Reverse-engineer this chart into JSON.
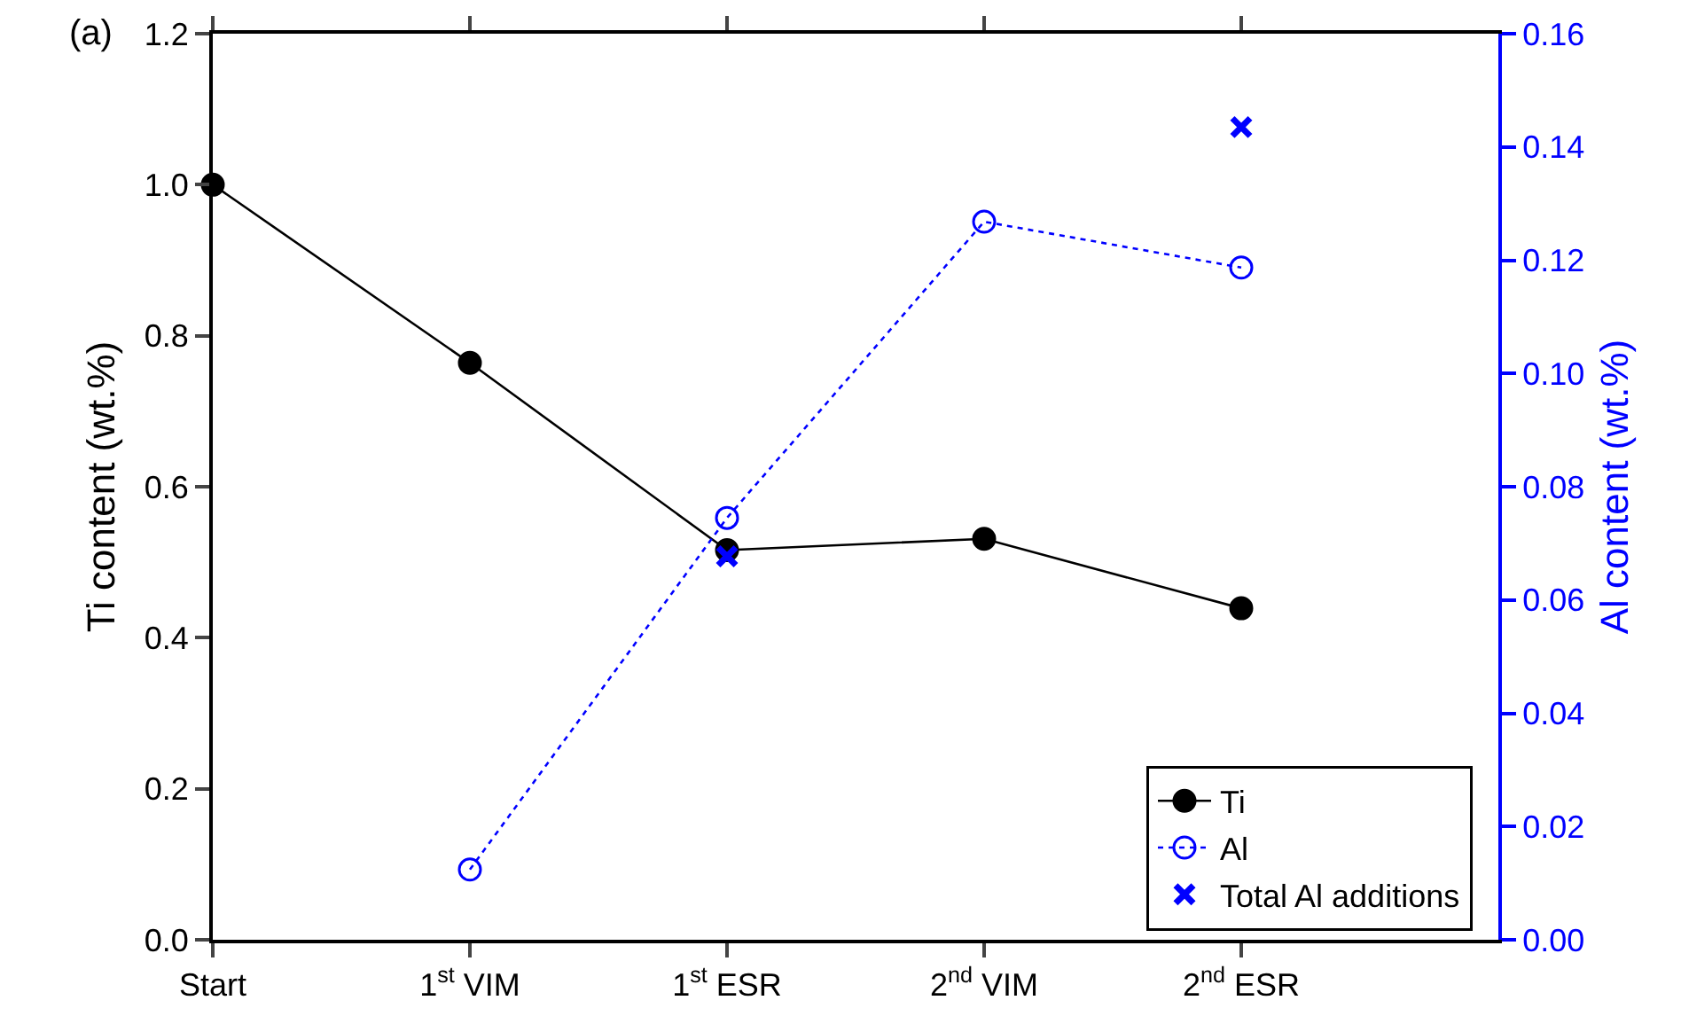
{
  "chart_data": {
    "type": "line",
    "categories": [
      "Start",
      "1$^{st}$ VIM",
      "1$^{st}$ ESR",
      "2$^{nd}$ VIM",
      "2$^{nd}$ ESR",
      null
    ],
    "series": [
      {
        "name": "Ti",
        "color": "#000000",
        "values": [
          1.0,
          0.764,
          0.516,
          0.531,
          0.439,
          null
        ],
        "marker": "circle",
        "line_style": "solid"
      },
      {
        "name": "Al",
        "color": "#0000ff",
        "values": [
          null,
          0.0124,
          0.0745,
          0.1268,
          0.1187,
          null
        ],
        "marker": "circle-open",
        "line_style": "dotted",
        "axis": "y2"
      },
      {
        "name": "Total Al additions",
        "type": "scatter",
        "color": "#0000ff",
        "values": [
          null,
          null,
          0.0677,
          null,
          0.1435,
          null
        ],
        "marker": "cross",
        "axis": "y2"
      }
    ],
    "ylabel": "Ti content (wt.%)",
    "y2label": "Al content (wt.%)",
    "ylim": [
      0,
      1.2
    ],
    "yticks": [
      {
        "value": 0,
        "label": "0.0"
      },
      {
        "value": 0.2,
        "label": "0.2"
      },
      {
        "value": 0.4,
        "label": "0.4"
      },
      {
        "value": 0.6,
        "label": "0.6"
      },
      {
        "value": 0.8,
        "label": "0.8"
      },
      {
        "value": 1,
        "label": "1.0"
      },
      {
        "value": 1.2,
        "label": "1.2"
      }
    ],
    "y2lim": [
      0,
      0.16
    ],
    "y2ticks": [
      {
        "value": 0,
        "label": "0.00"
      },
      {
        "value": 0.02,
        "label": "0.02"
      },
      {
        "value": 0.04,
        "label": "0.04"
      },
      {
        "value": 0.06,
        "label": "0.06"
      },
      {
        "value": 0.08,
        "label": "0.08"
      },
      {
        "value": 0.1,
        "label": "0.10"
      },
      {
        "value": 0.12,
        "label": "0.12"
      },
      {
        "value": 0.14,
        "label": "0.14"
      },
      {
        "value": 0.16,
        "label": "0.16"
      }
    ],
    "annotations": [
      "(a)"
    ],
    "grid": false,
    "legend": "bottom right"
  }
}
